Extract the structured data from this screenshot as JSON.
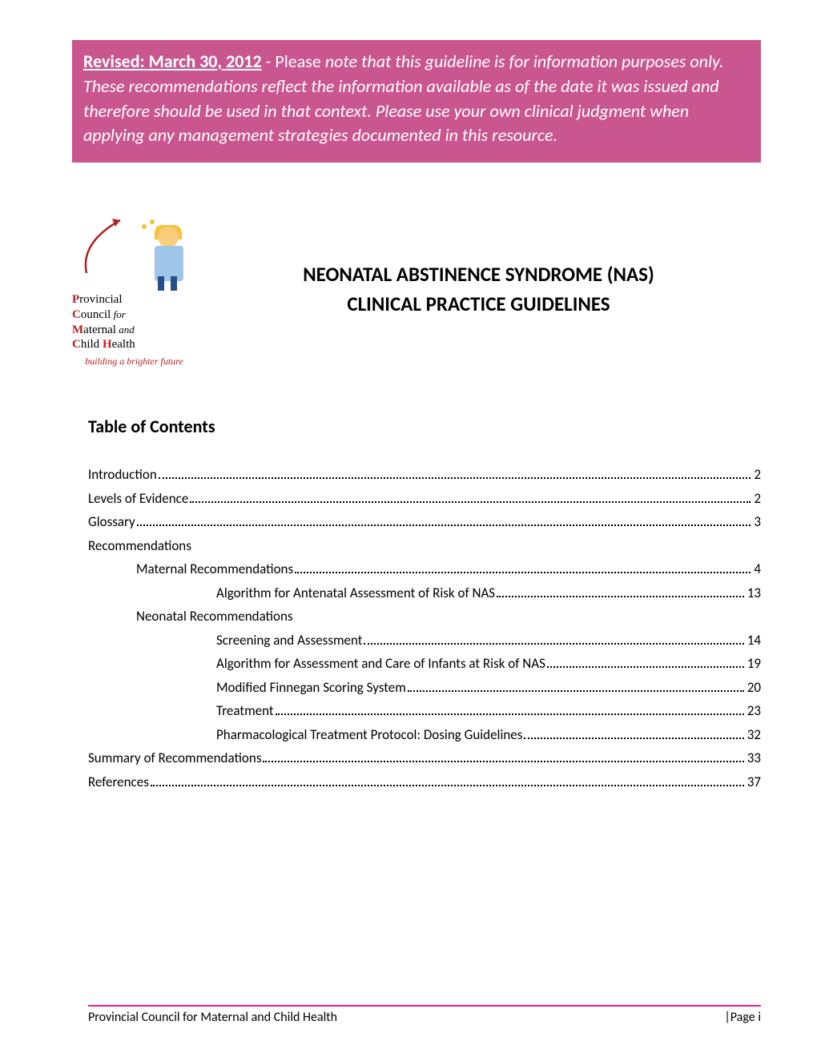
{
  "colors": {
    "banner_bg": "#c9568e",
    "banner_text": "#ffffff",
    "accent_red": "#b22222",
    "footer_rule": "#e91e8c",
    "body_text": "#000000",
    "page_bg": "#ffffff"
  },
  "typography": {
    "body_font": "Calibri",
    "title_fontsize_pt": 18,
    "toc_heading_fontsize_pt": 16,
    "toc_entry_fontsize_pt": 12,
    "banner_fontsize_pt": 16
  },
  "banner": {
    "revised_label": "Revised: March 30, 2012",
    "separator": " - ",
    "please_word": "Please ",
    "italic_body": "note that this guideline is for information purposes only.  These recommendations reflect the information available as of the date it was issued and therefore should be used in that context. Please use your own clinical judgment when applying any management strategies documented in this resource."
  },
  "logo": {
    "line1_initial": "P",
    "line1_rest": "rovincial",
    "line2_initial": "C",
    "line2_rest": "ouncil",
    "line2_for": " for",
    "line3_initial": "M",
    "line3_rest": "aternal",
    "line3_and": " and",
    "line4_initial": "C",
    "line4_rest": "hild ",
    "line4_health_h": "H",
    "line4_health_rest": "ealth",
    "tagline": "building a brighter future"
  },
  "title": {
    "line1": "NEONATAL ABSTINENCE SYNDROME (NAS)",
    "line2": "CLINICAL PRACTICE GUIDELINES"
  },
  "toc": {
    "heading": "Table of Contents",
    "entries": [
      {
        "label": "Introduction",
        "page": "2",
        "indent": 0,
        "dots": true
      },
      {
        "label": "Levels of Evidence",
        "page": "2",
        "indent": 0,
        "dots": true
      },
      {
        "label": "Glossary",
        "page": "3",
        "indent": 0,
        "dots": true
      },
      {
        "label": "Recommendations",
        "page": "",
        "indent": 0,
        "dots": false
      },
      {
        "label": "Maternal Recommendations",
        "page": "4",
        "indent": 1,
        "dots": true
      },
      {
        "label": "Algorithm for Antenatal Assessment of Risk of NAS",
        "page": "13",
        "indent": 2,
        "dots": true
      },
      {
        "label": "Neonatal Recommendations",
        "page": "",
        "indent": 1,
        "dots": false
      },
      {
        "label": "Screening and Assessment",
        "page": "14",
        "indent": 2,
        "dots": true
      },
      {
        "label": "Algorithm for Assessment and Care of Infants at Risk of NAS",
        "page": "19",
        "indent": 2,
        "dots": true
      },
      {
        "label": "Modified Finnegan Scoring System",
        "page": "20",
        "indent": 2,
        "dots": true
      },
      {
        "label": "Treatment",
        "page": "23",
        "indent": 2,
        "dots": true
      },
      {
        "label": "Pharmacological Treatment Protocol: Dosing Guidelines",
        "page": "32",
        "indent": 2,
        "dots": true
      },
      {
        "label": "Summary of Recommendations",
        "page": "33",
        "indent": 0,
        "dots": true
      },
      {
        "label": "References",
        "page": "37",
        "indent": 0,
        "dots": true
      }
    ]
  },
  "footer": {
    "left": "Provincial Council for Maternal and Child Health",
    "right": "|Page i"
  }
}
